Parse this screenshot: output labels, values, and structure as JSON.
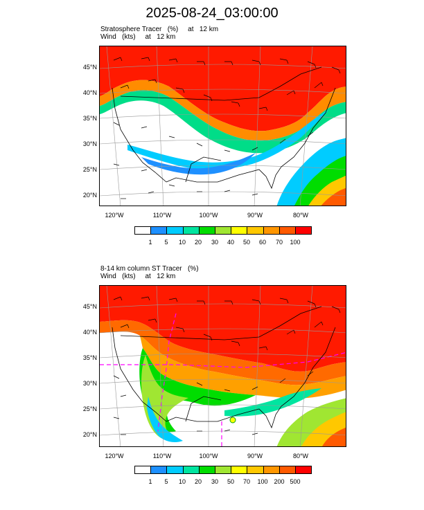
{
  "title": "2025-08-24_03:00:00",
  "panels": [
    {
      "subtitle_line1": "Stratosphere Tracer   (%)     at   12 km",
      "subtitle_line2": "Wind   (kts)     at   12 km",
      "lat_labels": [
        "45°N",
        "40°N",
        "35°N",
        "30°N",
        "25°N",
        "20°N"
      ],
      "lon_labels": [
        "120°W",
        "110°W",
        "100°W",
        "90°W",
        "80°W"
      ],
      "colorbar_labels": [
        "1",
        "5",
        "10",
        "20",
        "30",
        "40",
        "50",
        "60",
        "70",
        "100"
      ],
      "colorbar_colors": [
        "#ffffff",
        "#1e90ff",
        "#00ccff",
        "#00e5a0",
        "#00dd00",
        "#a0e632",
        "#ffff00",
        "#ffc800",
        "#ff9600",
        "#ff5a00",
        "#ff0000"
      ]
    },
    {
      "subtitle_line1": "8-14 km column ST Tracer   (%)",
      "subtitle_line2": "Wind   (kts)     at   12 km",
      "lat_labels": [
        "45°N",
        "40°N",
        "35°N",
        "30°N",
        "25°N",
        "20°N"
      ],
      "lon_labels": [
        "120°W",
        "110°W",
        "100°W",
        "90°W",
        "80°W"
      ],
      "colorbar_labels": [
        "1",
        "5",
        "10",
        "20",
        "30",
        "50",
        "70",
        "100",
        "200",
        "500"
      ],
      "colorbar_colors": [
        "#ffffff",
        "#1e90ff",
        "#00ccff",
        "#00e5a0",
        "#00dd00",
        "#a0e632",
        "#ffff00",
        "#ffc800",
        "#ff9600",
        "#ff5a00",
        "#ff0000"
      ]
    }
  ]
}
